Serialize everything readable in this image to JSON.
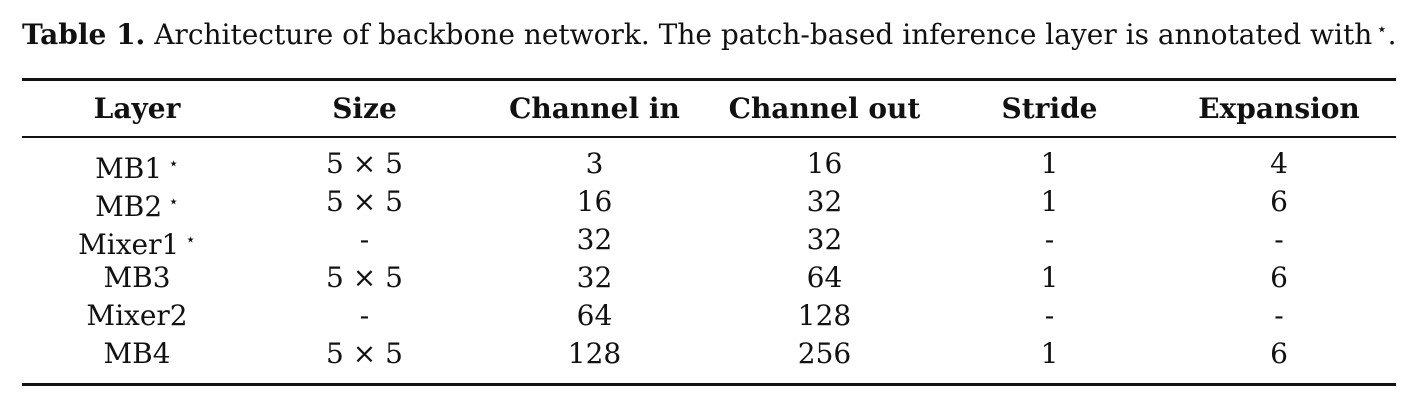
{
  "caption": {
    "label": "Table 1.",
    "text": " Architecture of backbone network. The patch-based inference layer is annotated with",
    "star": "⋆",
    "end": "."
  },
  "table": {
    "headers": [
      "Layer",
      "Size",
      "Channel in",
      "Channel out",
      "Stride",
      "Expansion"
    ],
    "rows": [
      {
        "layer": "MB1",
        "mark": "⋆",
        "size": "5 × 5",
        "channel_in": "3",
        "channel_out": "16",
        "stride": "1",
        "expansion": "4"
      },
      {
        "layer": "MB2",
        "mark": "⋆",
        "size": "5 × 5",
        "channel_in": "16",
        "channel_out": "32",
        "stride": "1",
        "expansion": "6"
      },
      {
        "layer": "Mixer1",
        "mark": "⋆",
        "size": "-",
        "channel_in": "32",
        "channel_out": "32",
        "stride": "-",
        "expansion": "-"
      },
      {
        "layer": "MB3",
        "mark": "",
        "size": "5 × 5",
        "channel_in": "32",
        "channel_out": "64",
        "stride": "1",
        "expansion": "6"
      },
      {
        "layer": "Mixer2",
        "mark": "",
        "size": "-",
        "channel_in": "64",
        "channel_out": "128",
        "stride": "-",
        "expansion": "-"
      },
      {
        "layer": "MB4",
        "mark": "",
        "size": "5 × 5",
        "channel_in": "128",
        "channel_out": "256",
        "stride": "1",
        "expansion": "6"
      }
    ]
  }
}
